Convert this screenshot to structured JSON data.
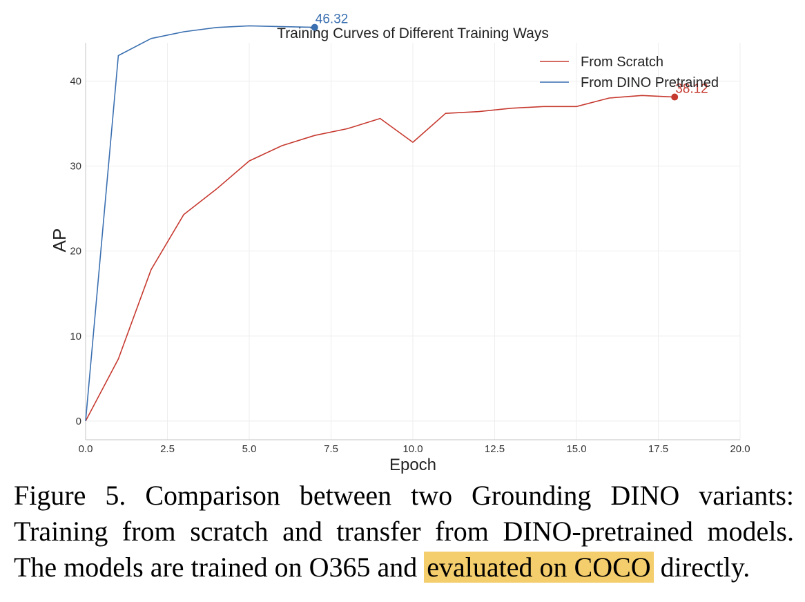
{
  "chart_data": {
    "type": "line",
    "title": "Training Curves of Different Training Ways",
    "xlabel": "Epoch",
    "ylabel": "AP",
    "xlim": [
      0,
      20
    ],
    "ylim": [
      -2.2,
      44.5
    ],
    "x_ticks": [
      0,
      2.5,
      5,
      7.5,
      10,
      12.5,
      15,
      17.5,
      20
    ],
    "x_tick_labels": [
      "0.0",
      "2.5",
      "5.0",
      "7.5",
      "10.0",
      "12.5",
      "15.0",
      "17.5",
      "20.0"
    ],
    "y_ticks": [
      0,
      10,
      20,
      30,
      40
    ],
    "y_tick_labels": [
      "0",
      "10",
      "20",
      "30",
      "40"
    ],
    "grid": true,
    "legend_position": "top-right",
    "series": [
      {
        "name": "From Scratch",
        "color": "#c6392f",
        "x": [
          0,
          1,
          2,
          3,
          4,
          5,
          6,
          7,
          8,
          9,
          10,
          11,
          12,
          13,
          14,
          15,
          16,
          17,
          18
        ],
        "y": [
          0,
          7.3,
          17.8,
          24.3,
          27.3,
          30.6,
          32.4,
          33.6,
          34.4,
          35.6,
          32.8,
          36.2,
          36.4,
          36.8,
          37.0,
          37.0,
          38.0,
          38.3,
          38.12
        ],
        "end_label": "38.12"
      },
      {
        "name": "From DINO Pretrained",
        "color": "#3a6fb0",
        "x": [
          0,
          1,
          2,
          3,
          4,
          5,
          6,
          7
        ],
        "y": [
          0,
          43.0,
          45.0,
          45.8,
          46.3,
          46.5,
          46.4,
          46.32
        ],
        "end_label": "46.32"
      }
    ]
  },
  "caption": {
    "line1": "Figure 5.  Comparison between two Grounding DINO variants:",
    "line2": "Training from scratch and transfer from DINO-pretrained models.",
    "line3_before": "The models are trained on O365 and ",
    "line3_highlight": "evaluated on COCO",
    "line3_after": " directly.",
    "highlight_color": "#f4cd6c"
  }
}
